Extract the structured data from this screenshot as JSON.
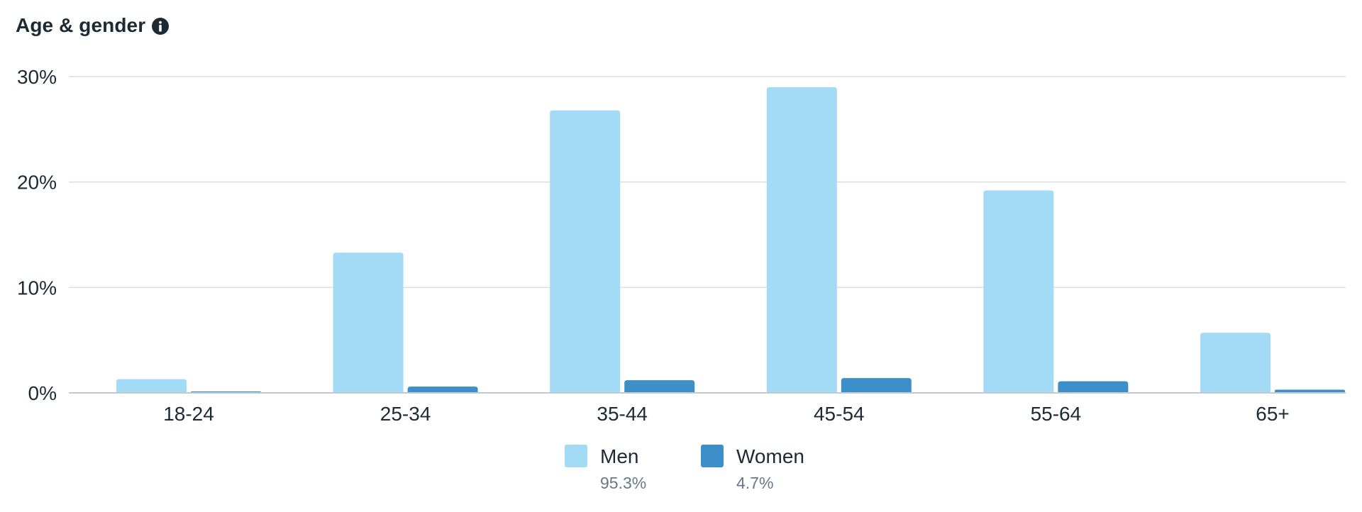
{
  "header": {
    "title": "Age & gender",
    "info_icon": "info-circle-icon"
  },
  "chart_data": {
    "type": "bar",
    "categories": [
      "18-24",
      "25-34",
      "35-44",
      "45-54",
      "55-64",
      "65+"
    ],
    "series": [
      {
        "name": "Men",
        "share": "95.3%",
        "color": "#a3dbf6",
        "values": [
          1.3,
          13.3,
          26.8,
          29.0,
          19.2,
          5.7
        ]
      },
      {
        "name": "Women",
        "share": "4.7%",
        "color": "#3d8fca",
        "values": [
          0.1,
          0.6,
          1.2,
          1.4,
          1.1,
          0.3
        ]
      }
    ],
    "ylim": [
      0,
      30
    ],
    "yticks": [
      0,
      10,
      20,
      30
    ],
    "ytick_labels": [
      "0%",
      "10%",
      "20%",
      "30%"
    ],
    "grid": true,
    "legend_position": "bottom-center"
  },
  "colors": {
    "text": "#1c2b33",
    "muted": "#67788a",
    "gridline": "#d9dde1"
  }
}
